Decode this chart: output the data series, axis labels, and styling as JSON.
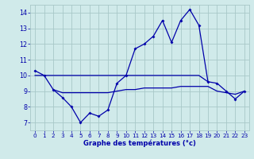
{
  "title": "Graphe des températures (°c)",
  "background_color": "#d0eaea",
  "grid_color": "#a8c8c8",
  "line_color": "#0000aa",
  "xlim": [
    -0.5,
    23.5
  ],
  "ylim": [
    6.5,
    14.5
  ],
  "xticks": [
    0,
    1,
    2,
    3,
    4,
    5,
    6,
    7,
    8,
    9,
    10,
    11,
    12,
    13,
    14,
    15,
    16,
    17,
    18,
    19,
    20,
    21,
    22,
    23
  ],
  "yticks": [
    7,
    8,
    9,
    10,
    11,
    12,
    13,
    14
  ],
  "curve_x": [
    0,
    1,
    2,
    3,
    4,
    5,
    6,
    7,
    8,
    9,
    10,
    11,
    12,
    13,
    14,
    15,
    16,
    17,
    18,
    19,
    20,
    21,
    22,
    23
  ],
  "curve_y": [
    10.3,
    10.0,
    9.1,
    8.6,
    8.0,
    7.0,
    7.6,
    7.4,
    7.8,
    9.5,
    10.0,
    11.7,
    12.0,
    12.5,
    13.5,
    12.1,
    13.5,
    14.2,
    13.2,
    9.6,
    9.5,
    9.0,
    8.5,
    9.0
  ],
  "flat_high_x": [
    0,
    1,
    2,
    3,
    4,
    5,
    6,
    7,
    8,
    9,
    10,
    11,
    12,
    13,
    14,
    15,
    16,
    17,
    18,
    19
  ],
  "flat_high_y": [
    10.0,
    10.0,
    10.0,
    10.0,
    10.0,
    10.0,
    10.0,
    10.0,
    10.0,
    10.0,
    10.0,
    10.0,
    10.0,
    10.0,
    10.0,
    10.0,
    10.0,
    10.0,
    10.0,
    9.6
  ],
  "flat_low_x": [
    2,
    3,
    4,
    5,
    6,
    7,
    8,
    9,
    10,
    11,
    12,
    13,
    14,
    15,
    16,
    17,
    18,
    19,
    20,
    21,
    22,
    23
  ],
  "flat_low_y": [
    9.1,
    8.9,
    8.9,
    8.9,
    8.9,
    8.9,
    8.9,
    9.0,
    9.1,
    9.1,
    9.2,
    9.2,
    9.2,
    9.2,
    9.3,
    9.3,
    9.3,
    9.3,
    9.0,
    8.9,
    8.8,
    9.0
  ]
}
